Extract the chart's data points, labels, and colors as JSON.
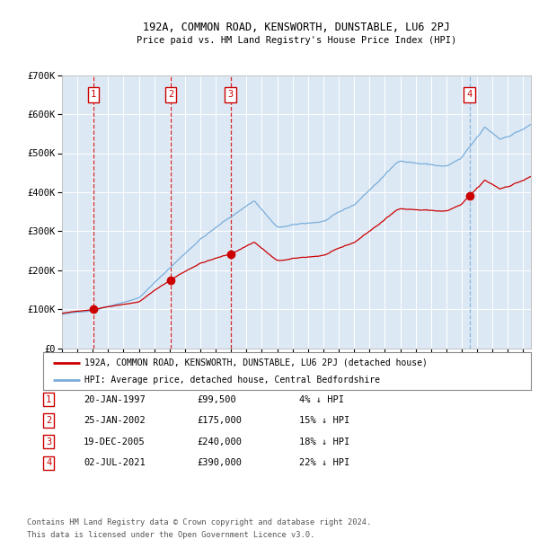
{
  "title1": "192A, COMMON ROAD, KENSWORTH, DUNSTABLE, LU6 2PJ",
  "title2": "Price paid vs. HM Land Registry's House Price Index (HPI)",
  "legend_line1": "192A, COMMON ROAD, KENSWORTH, DUNSTABLE, LU6 2PJ (detached house)",
  "legend_line2": "HPI: Average price, detached house, Central Bedfordshire",
  "footer1": "Contains HM Land Registry data © Crown copyright and database right 2024.",
  "footer2": "This data is licensed under the Open Government Licence v3.0.",
  "transactions": [
    {
      "num": 1,
      "date": "20-JAN-1997",
      "year": 1997.05,
      "price": 99500,
      "pct": "4% ↓ HPI"
    },
    {
      "num": 2,
      "date": "25-JAN-2002",
      "year": 2002.07,
      "price": 175000,
      "pct": "15% ↓ HPI"
    },
    {
      "num": 3,
      "date": "19-DEC-2005",
      "year": 2005.97,
      "price": 240000,
      "pct": "18% ↓ HPI"
    },
    {
      "num": 4,
      "date": "02-JUL-2021",
      "year": 2021.5,
      "price": 390000,
      "pct": "22% ↓ HPI"
    }
  ],
  "price_display": [
    "£99,500",
    "£175,000",
    "£240,000",
    "£390,000"
  ],
  "xmin": 1995.0,
  "xmax": 2025.5,
  "ymin": 0,
  "ymax": 700000,
  "yticks": [
    0,
    100000,
    200000,
    300000,
    400000,
    500000,
    600000,
    700000
  ],
  "ytick_labels": [
    "£0",
    "£100K",
    "£200K",
    "£300K",
    "£400K",
    "£500K",
    "£600K",
    "£700K"
  ],
  "background_color": "#dce9f5",
  "grid_color": "#ffffff",
  "red_color": "#cc0000",
  "blue_color": "#7aadda",
  "vline_colors": [
    "#cc0000",
    "#cc0000",
    "#cc0000",
    "#7aadda"
  ]
}
